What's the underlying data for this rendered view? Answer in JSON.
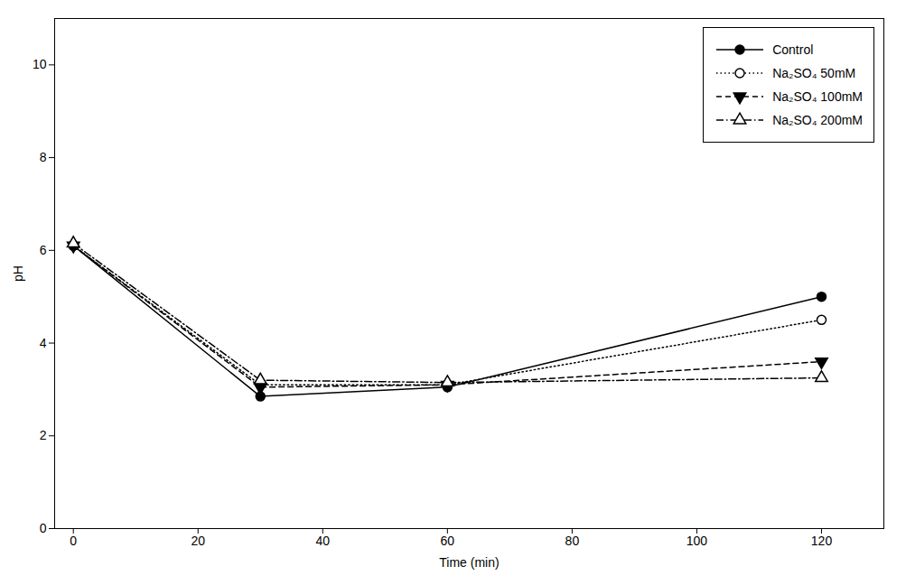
{
  "chart_data": {
    "type": "line",
    "xlabel": "Time (min)",
    "ylabel": "pH",
    "x": [
      0,
      30,
      60,
      120
    ],
    "series": [
      {
        "name": "Control",
        "color": "black",
        "marker": "filled_circle",
        "line_style": "solid",
        "values": [
          6.1,
          2.85,
          3.05,
          5.0
        ]
      },
      {
        "name": "Na₂SO₄ 50mM",
        "color": "black",
        "marker": "open_circle",
        "line_style": "dotted",
        "values": [
          6.1,
          3.1,
          3.1,
          4.5
        ]
      },
      {
        "name": "Na₂SO₄ 100mM",
        "color": "black",
        "marker": "filled_triangle_down",
        "line_style": "dashed",
        "values": [
          6.1,
          3.05,
          3.1,
          3.6
        ]
      },
      {
        "name": "Na₂SO₄ 200mM",
        "color": "black",
        "marker": "open_triangle_up",
        "line_style": "dashdot",
        "values": [
          6.15,
          3.2,
          3.15,
          3.25
        ]
      }
    ],
    "xlim": [
      -3,
      130
    ],
    "ylim": [
      0,
      11
    ],
    "xticks": [
      0,
      20,
      40,
      60,
      80,
      100,
      120
    ],
    "yticks": [
      0,
      2,
      4,
      6,
      8,
      10
    ],
    "grid": false,
    "legend": "upper right"
  }
}
